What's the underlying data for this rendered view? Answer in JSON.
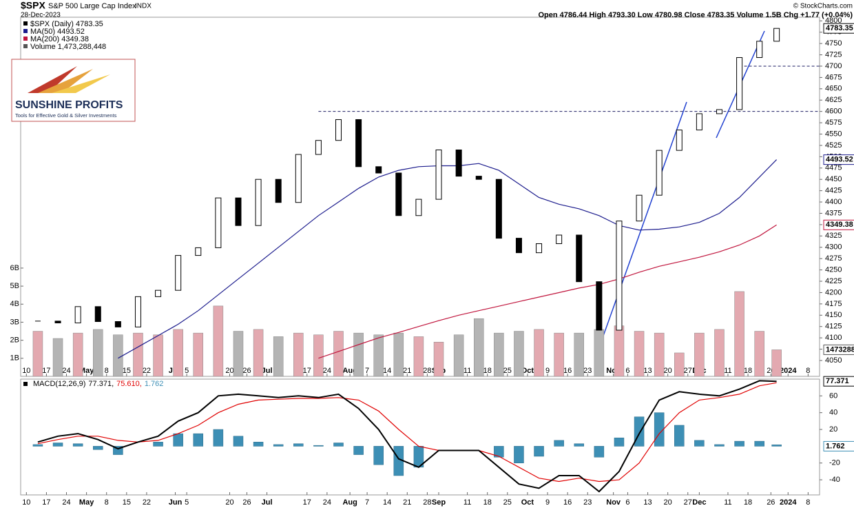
{
  "chart_data": {
    "type": "candlestick",
    "title": "$SPX",
    "subtitle": "S&P 500 Large Cap Index",
    "exchange": "INDX",
    "date": "28-Dec-2023",
    "source": "© StockCharts.com",
    "quote": "Open 4786.44 High 4793.30 Low 4780.98 Close 4783.35 Volume 1.5B Chg +1.77 (+0.04%)",
    "logo": {
      "title": "SUNSHINE PROFITS",
      "tagline": "Tools for Effective Gold & Silver Investments"
    },
    "x": [
      "2023-04-14",
      "2023-04-21",
      "2023-04-28",
      "2023-05-05",
      "2023-05-12",
      "2023-05-19",
      "2023-05-26",
      "2023-06-02",
      "2023-06-09",
      "2023-06-16",
      "2023-06-23",
      "2023-06-30",
      "2023-07-07",
      "2023-07-14",
      "2023-07-21",
      "2023-07-28",
      "2023-08-04",
      "2023-08-11",
      "2023-08-18",
      "2023-08-25",
      "2023-09-01",
      "2023-09-08",
      "2023-09-15",
      "2023-09-22",
      "2023-09-29",
      "2023-10-06",
      "2023-10-13",
      "2023-10-20",
      "2023-10-27",
      "2023-11-03",
      "2023-11-10",
      "2023-11-17",
      "2023-11-24",
      "2023-12-01",
      "2023-12-08",
      "2023-12-15",
      "2023-12-22",
      "2023-12-28"
    ],
    "xlim": [
      "2023-04-08",
      "2024-01-12"
    ],
    "xticks": [
      {
        "value": "2023-04-10",
        "label": "10"
      },
      {
        "value": "2023-04-17",
        "label": "17"
      },
      {
        "value": "2023-04-24",
        "label": "24"
      },
      {
        "value": "2023-05-01",
        "label": "May"
      },
      {
        "value": "2023-05-08",
        "label": "8"
      },
      {
        "value": "2023-05-15",
        "label": "15"
      },
      {
        "value": "2023-05-22",
        "label": "22"
      },
      {
        "value": "2023-06-01",
        "label": "Jun"
      },
      {
        "value": "2023-06-05",
        "label": "5"
      },
      {
        "value": "2023-06-20",
        "label": "20"
      },
      {
        "value": "2023-06-26",
        "label": "26"
      },
      {
        "value": "2023-07-03",
        "label": "Jul"
      },
      {
        "value": "2023-07-17",
        "label": "17"
      },
      {
        "value": "2023-07-24",
        "label": "24"
      },
      {
        "value": "2023-08-01",
        "label": "Aug"
      },
      {
        "value": "2023-08-07",
        "label": "7"
      },
      {
        "value": "2023-08-14",
        "label": "14"
      },
      {
        "value": "2023-08-21",
        "label": "21"
      },
      {
        "value": "2023-08-28",
        "label": "28"
      },
      {
        "value": "2023-09-01",
        "label": "Sep"
      },
      {
        "value": "2023-09-11",
        "label": "11"
      },
      {
        "value": "2023-09-18",
        "label": "18"
      },
      {
        "value": "2023-09-25",
        "label": "25"
      },
      {
        "value": "2023-10-02",
        "label": "Oct"
      },
      {
        "value": "2023-10-09",
        "label": "9"
      },
      {
        "value": "2023-10-16",
        "label": "16"
      },
      {
        "value": "2023-10-23",
        "label": "23"
      },
      {
        "value": "2023-11-01",
        "label": "Nov"
      },
      {
        "value": "2023-11-06",
        "label": "6"
      },
      {
        "value": "2023-11-13",
        "label": "13"
      },
      {
        "value": "2023-11-20",
        "label": "20"
      },
      {
        "value": "2023-11-27",
        "label": "27"
      },
      {
        "value": "2023-12-01",
        "label": "Dec"
      },
      {
        "value": "2023-12-11",
        "label": "11"
      },
      {
        "value": "2023-12-18",
        "label": "18"
      },
      {
        "value": "2023-12-26",
        "label": "26"
      },
      {
        "value": "2024-01-01",
        "label": "2024"
      },
      {
        "value": "2024-01-08",
        "label": "8"
      }
    ],
    "price": {
      "name": "$SPX (Daily) 4783.35",
      "values": [
        4137,
        4133,
        4169,
        4136,
        4124,
        4191,
        4205,
        4282,
        4299,
        4409,
        4348,
        4450,
        4399,
        4505,
        4536,
        4582,
        4478,
        4464,
        4370,
        4406,
        4515,
        4457,
        4450,
        4320,
        4288,
        4308,
        4327,
        4224,
        4117,
        4358,
        4415,
        4514,
        4559,
        4595,
        4604,
        4719,
        4755,
        4783.35
      ]
    },
    "ylim": [
      4015,
      4808
    ],
    "yticks": [
      4050,
      4075,
      4100,
      4125,
      4150,
      4175,
      4200,
      4225,
      4250,
      4275,
      4300,
      4325,
      4350,
      4375,
      4400,
      4425,
      4450,
      4475,
      4500,
      4525,
      4550,
      4575,
      4600,
      4625,
      4650,
      4675,
      4700,
      4725,
      4750,
      4775,
      4800
    ],
    "grid": false,
    "series": [
      {
        "name": "MA(50) 4493.52",
        "color": "#1a1a8c",
        "values": [
          null,
          null,
          null,
          null,
          4055,
          4080,
          4105,
          4130,
          4160,
          4195,
          4230,
          4265,
          4300,
          4335,
          4370,
          4400,
          4430,
          4455,
          4470,
          4478,
          4480,
          4480,
          4485,
          4470,
          4440,
          4410,
          4395,
          4385,
          4370,
          4348,
          4338,
          4340,
          4345,
          4355,
          4375,
          4410,
          4455,
          4493.52
        ]
      },
      {
        "name": "MA(200) 4349.38",
        "color": "#c0143c",
        "values": [
          null,
          null,
          null,
          null,
          null,
          null,
          null,
          null,
          null,
          null,
          null,
          null,
          null,
          null,
          4055,
          4070,
          4085,
          4100,
          4112,
          4125,
          4138,
          4150,
          4160,
          4170,
          4180,
          4190,
          4200,
          4210,
          4218,
          4230,
          4245,
          4258,
          4268,
          4278,
          4290,
          4305,
          4325,
          4349.38
        ]
      }
    ],
    "reference_lines": [
      {
        "value": 4600,
        "from": "2023-07-21"
      },
      {
        "value": 4700,
        "from": "2023-12-15"
      }
    ],
    "volume": {
      "name": "Volume 1,473,288,448",
      "up_color": "#e3a9b0",
      "down_color": "#b4b4b4",
      "tag": "1473288",
      "values": [
        2.5,
        2.1,
        2.4,
        2.6,
        2.3,
        2.4,
        2.3,
        2.6,
        2.4,
        3.9,
        2.5,
        2.6,
        2.2,
        2.4,
        2.3,
        2.5,
        2.4,
        2.3,
        2.4,
        2.2,
        1.9,
        2.3,
        3.2,
        2.4,
        2.5,
        2.6,
        2.4,
        2.4,
        2.6,
        2.8,
        2.5,
        2.4,
        1.3,
        2.4,
        2.6,
        4.7,
        2.5,
        1.473288448
      ],
      "ylim": [
        0,
        19.9
      ],
      "yticks": [
        {
          "value": 1,
          "label": "1B"
        },
        {
          "value": 2,
          "label": "2B"
        },
        {
          "value": 3,
          "label": "3B"
        },
        {
          "value": 4,
          "label": "4B"
        },
        {
          "value": 5,
          "label": "5B"
        },
        {
          "value": 6,
          "label": "6B"
        }
      ]
    },
    "macd": {
      "title": "MACD(12,26,9)",
      "ylim": [
        -58,
        80
      ],
      "yticks": [
        -40,
        -20,
        20,
        40,
        60
      ],
      "line": {
        "name": "77.371,",
        "color": "#000000",
        "values": [
          5,
          12,
          15,
          8,
          -3,
          5,
          12,
          30,
          40,
          60,
          62,
          60,
          58,
          60,
          58,
          62,
          45,
          20,
          -15,
          -25,
          -5,
          -5,
          -5,
          -25,
          -45,
          -50,
          -35,
          -35,
          -54,
          -30,
          15,
          55,
          65,
          62,
          60,
          68,
          78,
          77.371
        ]
      },
      "signal": {
        "name": "75.610,",
        "color": "#e00000",
        "values": [
          3,
          8,
          12,
          12,
          7,
          5,
          7,
          15,
          25,
          40,
          50,
          55,
          56,
          57,
          57,
          58,
          55,
          42,
          20,
          0,
          -5,
          -5,
          -5,
          -12,
          -25,
          -38,
          -42,
          -38,
          -42,
          -40,
          -20,
          15,
          40,
          55,
          58,
          62,
          72,
          75.61
        ]
      },
      "histogram": {
        "name": "1.762",
        "color": "#3d8fb5",
        "values": [
          2,
          4,
          3,
          -4,
          -10,
          0,
          5,
          15,
          15,
          20,
          12,
          5,
          2,
          3,
          1,
          4,
          -10,
          -22,
          -35,
          -25,
          0,
          0,
          0,
          -13,
          -20,
          -12,
          7,
          3,
          -13,
          10,
          35,
          40,
          25,
          7,
          2,
          6,
          6,
          1.762
        ]
      }
    }
  }
}
